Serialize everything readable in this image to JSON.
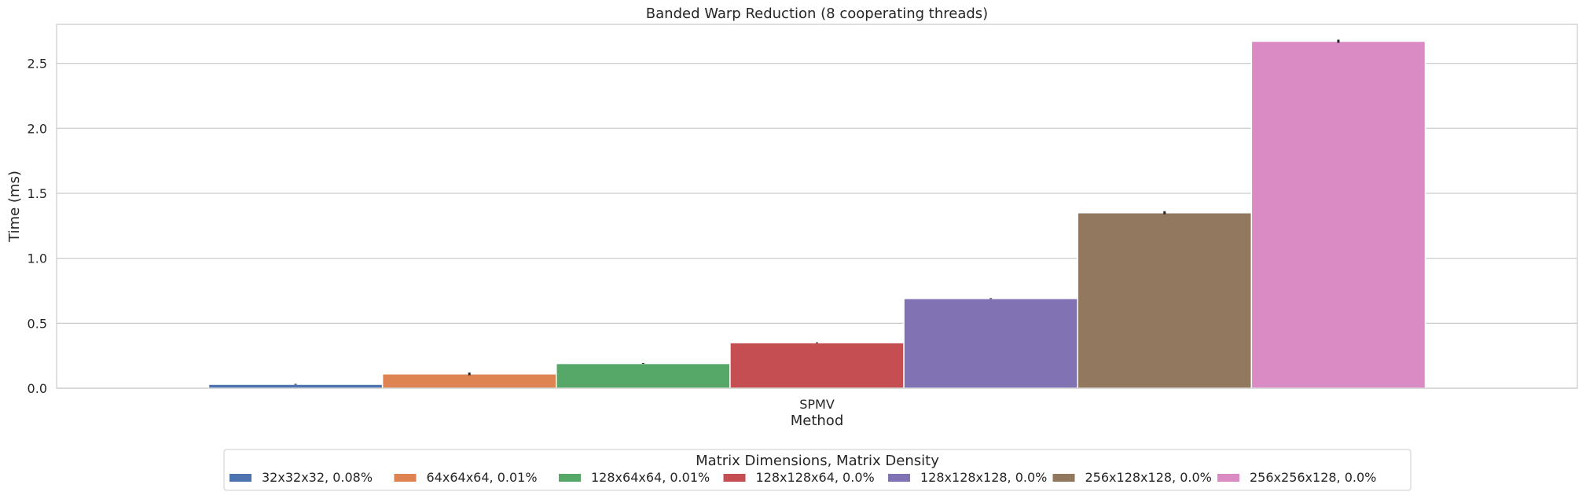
{
  "chart_data": {
    "type": "bar",
    "title": "Banded Warp Reduction (8 cooperating threads)",
    "xlabel": "Method",
    "ylabel": "Time (ms)",
    "categories": [
      "SPMV"
    ],
    "ylim": [
      0,
      2.8
    ],
    "yticks": [
      0.0,
      0.5,
      1.0,
      1.5,
      2.0,
      2.5
    ],
    "ytick_labels": [
      "0.0",
      "0.5",
      "1.0",
      "1.5",
      "2.0",
      "2.5"
    ],
    "grid": "horizontal",
    "legend": {
      "title": "Matrix Dimensions, Matrix Density",
      "placement": "bottom-center"
    },
    "series": [
      {
        "name": "32x32x32, 0.08%",
        "values": [
          0.03
        ],
        "error": [
          0.003
        ],
        "color": "#4c72b0"
      },
      {
        "name": "64x64x64, 0.01%",
        "values": [
          0.11
        ],
        "error": [
          0.01
        ],
        "color": "#dd8452"
      },
      {
        "name": "128x64x64, 0.01%",
        "values": [
          0.19
        ],
        "error": [
          0.003
        ],
        "color": "#55a868"
      },
      {
        "name": "128x128x64, 0.0%",
        "values": [
          0.35
        ],
        "error": [
          0.003
        ],
        "color": "#c44e52"
      },
      {
        "name": "128x128x128, 0.0%",
        "values": [
          0.69
        ],
        "error": [
          0.003
        ],
        "color": "#8172b3"
      },
      {
        "name": "256x128x128, 0.0%",
        "values": [
          1.35
        ],
        "error": [
          0.012
        ],
        "color": "#937860"
      },
      {
        "name": "256x256x128, 0.0%",
        "values": [
          2.67
        ],
        "error": [
          0.012
        ],
        "color": "#da8bc3"
      }
    ]
  }
}
